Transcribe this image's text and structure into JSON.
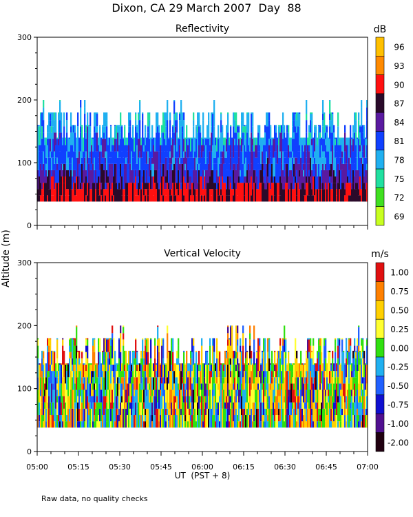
{
  "page_title": "Dixon, CA 29 March 2007  Day  88",
  "footnote": "Raw data, no quality checks",
  "chart_data": [
    {
      "type": "heatmap",
      "title": "Reflectivity",
      "units": "dB",
      "ylabel": "Altitude (m)",
      "ylim": [
        0,
        300
      ],
      "yticks": [
        "0",
        "100",
        "200",
        "300"
      ],
      "xlim": [
        "05:00",
        "07:00"
      ],
      "colorbar": {
        "labels": [
          "96",
          "93",
          "90",
          "87",
          "84",
          "81",
          "78",
          "75",
          "72",
          "69"
        ],
        "colors": [
          "#ffc000",
          "#ff8a00",
          "#ff1010",
          "#2a0a2a",
          "#5a1aa0",
          "#1040ff",
          "#20b0f0",
          "#20e0a0",
          "#40e020",
          "#c8ff20"
        ]
      },
      "data_bottom_m": 38,
      "echo_top_typical_m": [
        140,
        180
      ],
      "echo_top_max_m": 200
    },
    {
      "type": "heatmap",
      "title": "Vertical Velocity",
      "units": "m/s",
      "ylim": [
        0,
        300
      ],
      "yticks": [
        "0",
        "100",
        "200",
        "300"
      ],
      "xlabel": "UT  (PST + 8)",
      "xticks": [
        "05:00",
        "05:15",
        "05:30",
        "05:45",
        "06:00",
        "06:15",
        "06:30",
        "06:45",
        "07:00"
      ],
      "colorbar": {
        "labels": [
          "1.00",
          "0.75",
          "0.50",
          "0.25",
          "0.00",
          "-0.25",
          "-0.50",
          "-0.75",
          "-1.00",
          "-2.00"
        ],
        "colors": [
          "#e01010",
          "#ff8000",
          "#ffd000",
          "#ffff30",
          "#30e010",
          "#20b0f0",
          "#2060ff",
          "#1010d0",
          "#501090",
          "#200010"
        ]
      },
      "data_bottom_m": 38,
      "echo_top_typical_m": [
        140,
        180
      ],
      "echo_top_max_m": 200
    }
  ]
}
